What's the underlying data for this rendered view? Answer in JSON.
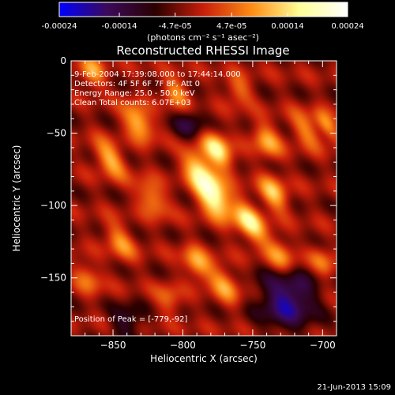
{
  "chart_data": {
    "type": "heatmap",
    "title": "Reconstructed RHESSI Image",
    "xlabel": "Heliocentric X (arcsec)",
    "ylabel": "Heliocentric Y (arcsec)",
    "xlim": [
      -880,
      -690
    ],
    "ylim": [
      -190,
      0
    ],
    "xticks": [
      -850,
      -800,
      -750,
      -700
    ],
    "yticks": [
      0,
      -50,
      -100,
      -150
    ],
    "colorbar": {
      "range": [
        -0.00024,
        0.00024
      ],
      "tick_values": [
        -0.00024,
        -0.00014,
        -4.7e-05,
        4.7e-05,
        0.00014,
        0.00024
      ],
      "tick_labels": [
        "-0.00024",
        "-0.00014",
        "-4.7e-05",
        "4.7e-05",
        "0.00014",
        "0.00024"
      ],
      "units": "(photons cm⁻² s⁻¹ asec⁻²)",
      "colors": [
        "#0000ff",
        "#3b0a5a",
        "#2a0000",
        "#c81e0a",
        "#ff8c14",
        "#ffff96",
        "#ffffff"
      ]
    },
    "annotations": [
      "9-Feb-2004 17:39:08.000 to 17:44:14.000",
      "Detectors: 4F 5F 6F 7F 8F, Att 0",
      "Energy Range: 25.0 - 50.0 keV",
      "Clean    Total counts: 6.07E+03"
    ],
    "peak_label": "Position of Peak = [-779,-92]",
    "peak": {
      "x": -779,
      "y": -92
    },
    "sources": [
      {
        "x": -779,
        "y": -92,
        "amp": 0.00024,
        "sx": 7,
        "sy": 13
      },
      {
        "x": -775,
        "y": -62,
        "amp": 0.00019,
        "sx": 6,
        "sy": 10
      },
      {
        "x": -790,
        "y": -72,
        "amp": 0.00013,
        "sx": 6,
        "sy": 10
      },
      {
        "x": -752,
        "y": -112,
        "amp": 0.00018,
        "sx": 6,
        "sy": 11
      },
      {
        "x": -735,
        "y": -92,
        "amp": 0.00015,
        "sx": 6,
        "sy": 9
      },
      {
        "x": -832,
        "y": -42,
        "amp": 0.00016,
        "sx": 6,
        "sy": 10
      },
      {
        "x": -805,
        "y": -22,
        "amp": 0.00011,
        "sx": 6,
        "sy": 8
      },
      {
        "x": -852,
        "y": -68,
        "amp": 0.00014,
        "sx": 6,
        "sy": 10
      },
      {
        "x": -865,
        "y": -8,
        "amp": 0.00012,
        "sx": 6,
        "sy": 8
      },
      {
        "x": -822,
        "y": -95,
        "amp": 0.00012,
        "sx": 6,
        "sy": 10
      },
      {
        "x": -845,
        "y": -125,
        "amp": 0.00011,
        "sx": 6,
        "sy": 10
      },
      {
        "x": -790,
        "y": -140,
        "amp": 0.00013,
        "sx": 6,
        "sy": 9
      },
      {
        "x": -770,
        "y": -155,
        "amp": 0.00012,
        "sx": 6,
        "sy": 10
      },
      {
        "x": -730,
        "y": -135,
        "amp": 0.00012,
        "sx": 6,
        "sy": 10
      },
      {
        "x": -740,
        "y": -55,
        "amp": 0.00013,
        "sx": 6,
        "sy": 9
      },
      {
        "x": -712,
        "y": -48,
        "amp": 0.0001,
        "sx": 6,
        "sy": 10
      },
      {
        "x": -697,
        "y": -45,
        "amp": 0.00012,
        "sx": 4,
        "sy": 9
      },
      {
        "x": -700,
        "y": -140,
        "amp": 0.0001,
        "sx": 5,
        "sy": 9
      },
      {
        "x": -868,
        "y": -150,
        "amp": 9e-05,
        "sx": 6,
        "sy": 9
      },
      {
        "x": -810,
        "y": -165,
        "amp": 8e-05,
        "sx": 6,
        "sy": 8
      },
      {
        "x": -760,
        "y": -20,
        "amp": 9e-05,
        "sx": 6,
        "sy": 8
      },
      {
        "x": -725,
        "y": -165,
        "amp": -0.00016,
        "sx": 14,
        "sy": 14
      },
      {
        "x": -795,
        "y": -45,
        "amp": -9e-05,
        "sx": 8,
        "sy": 8
      },
      {
        "x": -840,
        "y": -180,
        "amp": -9e-05,
        "sx": 8,
        "sy": 8
      }
    ]
  },
  "footer": {
    "timestamp": "21-Jun-2013 15:09"
  }
}
